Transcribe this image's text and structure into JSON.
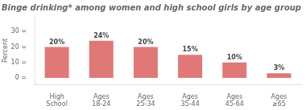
{
  "chart_data": {
    "type": "bar",
    "title": "Binge drinking* among women and high school girls by age group",
    "categories": [
      "High\nSchool",
      "Ages\n18-24",
      "Ages\n25-34",
      "Ages\n35-44",
      "Ages\n45-64",
      "Ages\n≥65"
    ],
    "values": [
      20,
      24,
      20,
      15,
      10,
      3
    ],
    "value_labels": [
      "20%",
      "24%",
      "20%",
      "15%",
      "10%",
      "3%"
    ],
    "data_labels": true,
    "color": "#e07878",
    "y_label": "Percent",
    "ylim": [
      -4.5,
      40
    ],
    "yticks": [
      {
        "value": 0,
        "label": "0 ="
      },
      {
        "value": 10,
        "label": "10 ="
      },
      {
        "value": 20,
        "label": "20 ="
      },
      {
        "value": 30,
        "label": "30 ="
      }
    ],
    "grid": false
  }
}
